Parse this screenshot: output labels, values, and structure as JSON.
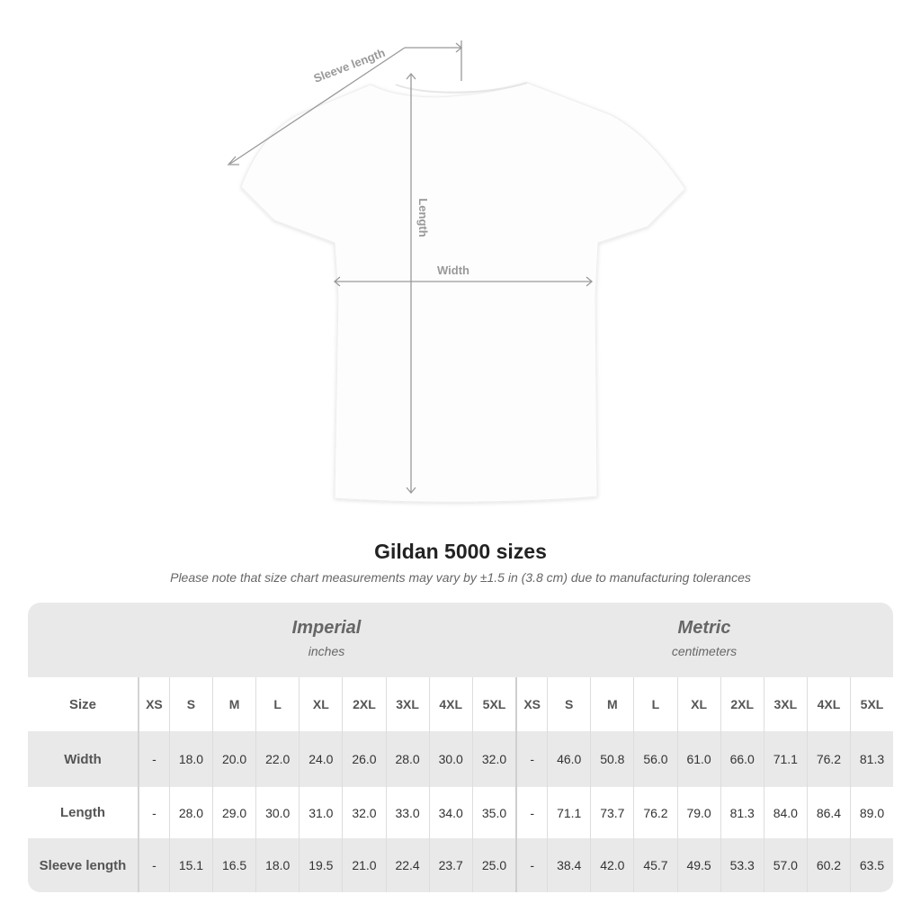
{
  "diagram": {
    "sleeve_label": "Sleeve length",
    "length_label": "Length",
    "width_label": "Width"
  },
  "title": "Gildan 5000 sizes",
  "note": "Please note that size chart measurements may vary by ±1.5 in (3.8 cm) due to manufacturing tolerances",
  "table": {
    "imperial": {
      "name": "Imperial",
      "unit": "inches"
    },
    "metric": {
      "name": "Metric",
      "unit": "centimeters"
    },
    "size_label": "Size",
    "sizes": [
      "XS",
      "S",
      "M",
      "L",
      "XL",
      "2XL",
      "3XL",
      "4XL",
      "5XL"
    ],
    "rows": [
      {
        "label": "Width",
        "imperial": [
          "-",
          "18.0",
          "20.0",
          "22.0",
          "24.0",
          "26.0",
          "28.0",
          "30.0",
          "32.0"
        ],
        "metric": [
          "-",
          "46.0",
          "50.8",
          "56.0",
          "61.0",
          "66.0",
          "71.1",
          "76.2",
          "81.3"
        ]
      },
      {
        "label": "Length",
        "imperial": [
          "-",
          "28.0",
          "29.0",
          "30.0",
          "31.0",
          "32.0",
          "33.0",
          "34.0",
          "35.0"
        ],
        "metric": [
          "-",
          "71.1",
          "73.7",
          "76.2",
          "79.0",
          "81.3",
          "84.0",
          "86.4",
          "89.0"
        ]
      },
      {
        "label": "Sleeve length",
        "imperial": [
          "-",
          "15.1",
          "16.5",
          "18.0",
          "19.5",
          "21.0",
          "22.4",
          "23.7",
          "25.0"
        ],
        "metric": [
          "-",
          "38.4",
          "42.0",
          "45.7",
          "49.5",
          "53.3",
          "57.0",
          "60.2",
          "63.5"
        ]
      }
    ]
  }
}
